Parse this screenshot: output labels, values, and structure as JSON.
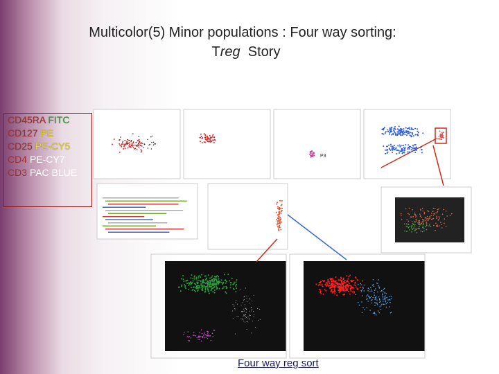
{
  "title": {
    "line1": "Multicolor(5)  Minor populations : Four way sorting:",
    "line2": {
      "prefix": "T",
      "italic": "reg",
      "suffix": "Story"
    }
  },
  "panel": {
    "markers": [
      {
        "marker": "CD45RA",
        "fluor": "FITC"
      },
      {
        "marker": "CD127",
        "fluor": "PE"
      },
      {
        "marker": "CD25",
        "fluor": "PE-CY5"
      },
      {
        "marker": "CD4",
        "fluor": "PE-CY7"
      },
      {
        "marker": "CD3",
        "fluor": "PAC BLUE"
      }
    ]
  },
  "gate_label": "P3",
  "caption": "Four way reg sort"
}
